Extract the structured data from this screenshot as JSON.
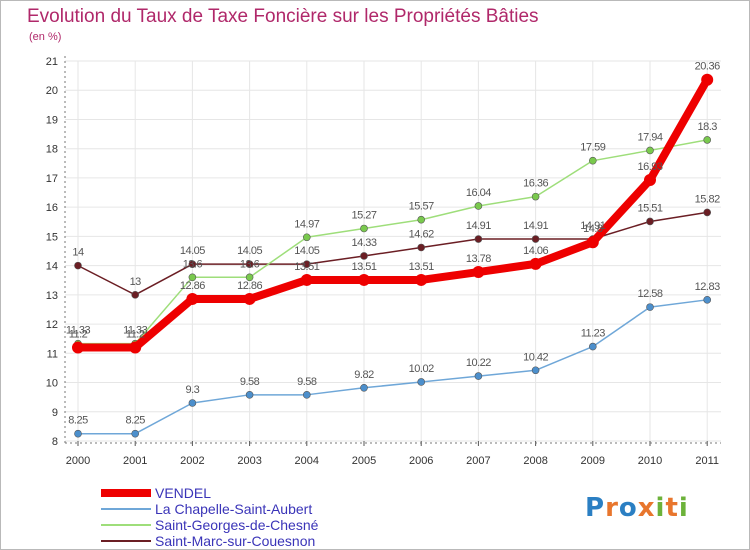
{
  "chart_data": {
    "type": "line",
    "title": "Evolution du Taux de Taxe Foncière sur les Propriétés Bâties",
    "ylabel": "(en %)",
    "xlabel": "",
    "ylim": [
      8,
      21
    ],
    "yticks": [
      "8",
      "9",
      "10",
      "11",
      "12",
      "13",
      "14",
      "15",
      "16",
      "17",
      "18",
      "19",
      "20",
      "21"
    ],
    "categories": [
      "2000",
      "2001",
      "2002",
      "2003",
      "2004",
      "2005",
      "2006",
      "2007",
      "2008",
      "2009",
      "2010",
      "2011"
    ],
    "grid": true,
    "legend_position": "bottom-left",
    "series": [
      {
        "name": "Saint-Marc-sur-Couesnon",
        "color": "#6b1e24",
        "fill": "#6b1e24",
        "values": [
          14,
          13,
          14.05,
          14.05,
          14.05,
          14.33,
          14.62,
          14.91,
          14.91,
          14.91,
          15.51,
          15.82
        ],
        "labels": [
          "14",
          "13",
          "14.05",
          "14.05",
          "14.05",
          "14.33",
          "14.62",
          "14.91",
          "14.91",
          "14.91",
          "15.51",
          "15.82"
        ]
      },
      {
        "name": "La Chapelle-Saint-Aubert",
        "color": "#6fa7d8",
        "fill": "#4c8fcc",
        "values": [
          8.25,
          8.25,
          9.3,
          9.58,
          9.58,
          9.82,
          10.02,
          10.22,
          10.42,
          11.23,
          12.58,
          12.83
        ],
        "labels": [
          "8.25",
          "8.25",
          "9.3",
          "9.58",
          "9.58",
          "9.82",
          "10.02",
          "10.22",
          "10.42",
          "11.23",
          "12.58",
          "12.83"
        ]
      },
      {
        "name": "Saint-Georges-de-Chesné",
        "color": "#9ede7a",
        "fill": "#79c94d",
        "values": [
          11.33,
          11.33,
          13.6,
          13.6,
          14.97,
          15.27,
          15.57,
          16.04,
          16.36,
          17.59,
          17.94,
          18.3
        ],
        "labels": [
          "11.33",
          "11.33",
          "13.6",
          "13.6",
          "14.97",
          "15.27",
          "15.57",
          "16.04",
          "16.36",
          "17.59",
          "17.94",
          "18.3"
        ]
      },
      {
        "name": "VENDEL",
        "color": "#ee0000",
        "fill": "#ee0000",
        "values": [
          11.2,
          11.2,
          12.86,
          12.86,
          13.51,
          13.51,
          13.51,
          13.78,
          14.06,
          14.8,
          16.93,
          20.36
        ],
        "labels": [
          "11.2",
          "11.2",
          "12.86",
          "12.86",
          "13.51",
          "13.51",
          "13.51",
          "13.78",
          "14.06",
          "14.8",
          "16.93",
          "20.36"
        ]
      }
    ],
    "legend": [
      {
        "name": "VENDEL",
        "color": "#ee0000"
      },
      {
        "name": "La Chapelle-Saint-Aubert",
        "color": "#6fa7d8"
      },
      {
        "name": "Saint-Georges-de-Chesné",
        "color": "#9ede7a"
      },
      {
        "name": "Saint-Marc-sur-Couesnon",
        "color": "#6b1e24"
      }
    ],
    "legend_text_color": "#3a34b8"
  },
  "logo_text": "Proxiti"
}
